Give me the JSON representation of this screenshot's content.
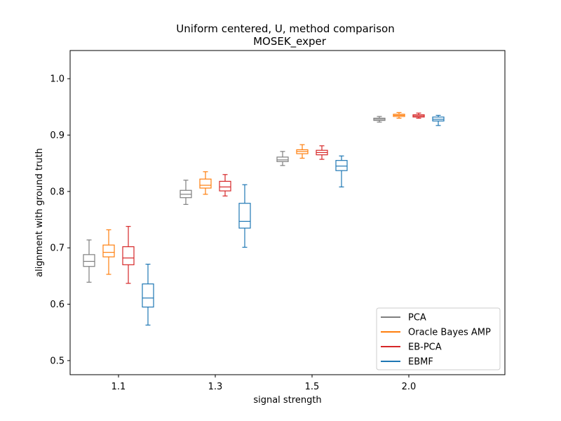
{
  "chart_data": {
    "type": "box",
    "title": "Uniform centered, U, method comparison",
    "subtitle": "MOSEK_exper",
    "xlabel": "signal strength",
    "ylabel": "alignment with ground truth",
    "ylim": [
      0.475,
      1.05
    ],
    "yticks": [
      0.5,
      0.6,
      0.7,
      0.8,
      0.9,
      1.0
    ],
    "ytick_labels": [
      "0.5",
      "0.6",
      "0.7",
      "0.8",
      "0.9",
      "1.0"
    ],
    "categories": [
      "1.1",
      "1.3",
      "1.5",
      "2.0"
    ],
    "grid": false,
    "legend_position": "lower-right",
    "series": [
      {
        "name": "PCA",
        "color": "#7f7f7f",
        "boxes": [
          {
            "whislo": 0.639,
            "q1": 0.667,
            "med": 0.676,
            "q3": 0.688,
            "whishi": 0.714
          },
          {
            "whislo": 0.777,
            "q1": 0.789,
            "med": 0.795,
            "q3": 0.802,
            "whishi": 0.82
          },
          {
            "whislo": 0.846,
            "q1": 0.853,
            "med": 0.856,
            "q3": 0.861,
            "whishi": 0.871
          },
          {
            "whislo": 0.923,
            "q1": 0.926,
            "med": 0.928,
            "q3": 0.93,
            "whishi": 0.933
          }
        ]
      },
      {
        "name": "Oracle Bayes AMP",
        "color": "#ff7f0e",
        "boxes": [
          {
            "whislo": 0.653,
            "q1": 0.684,
            "med": 0.692,
            "q3": 0.705,
            "whishi": 0.732
          },
          {
            "whislo": 0.795,
            "q1": 0.806,
            "med": 0.811,
            "q3": 0.822,
            "whishi": 0.835
          },
          {
            "whislo": 0.859,
            "q1": 0.867,
            "med": 0.871,
            "q3": 0.874,
            "whishi": 0.883
          },
          {
            "whislo": 0.93,
            "q1": 0.933,
            "med": 0.935,
            "q3": 0.937,
            "whishi": 0.94
          }
        ]
      },
      {
        "name": "EB-PCA",
        "color": "#d62728",
        "boxes": [
          {
            "whislo": 0.637,
            "q1": 0.67,
            "med": 0.682,
            "q3": 0.702,
            "whishi": 0.738
          },
          {
            "whislo": 0.792,
            "q1": 0.801,
            "med": 0.808,
            "q3": 0.818,
            "whishi": 0.83
          },
          {
            "whislo": 0.857,
            "q1": 0.865,
            "med": 0.869,
            "q3": 0.873,
            "whishi": 0.881
          },
          {
            "whislo": 0.93,
            "q1": 0.932,
            "med": 0.934,
            "q3": 0.936,
            "whishi": 0.939
          }
        ]
      },
      {
        "name": "EBMF",
        "color": "#1f77b4",
        "boxes": [
          {
            "whislo": 0.563,
            "q1": 0.595,
            "med": 0.611,
            "q3": 0.636,
            "whishi": 0.671
          },
          {
            "whislo": 0.701,
            "q1": 0.735,
            "med": 0.747,
            "q3": 0.779,
            "whishi": 0.812
          },
          {
            "whislo": 0.808,
            "q1": 0.837,
            "med": 0.845,
            "q3": 0.855,
            "whishi": 0.863
          },
          {
            "whislo": 0.917,
            "q1": 0.925,
            "med": 0.928,
            "q3": 0.932,
            "whishi": 0.935
          }
        ]
      }
    ]
  }
}
